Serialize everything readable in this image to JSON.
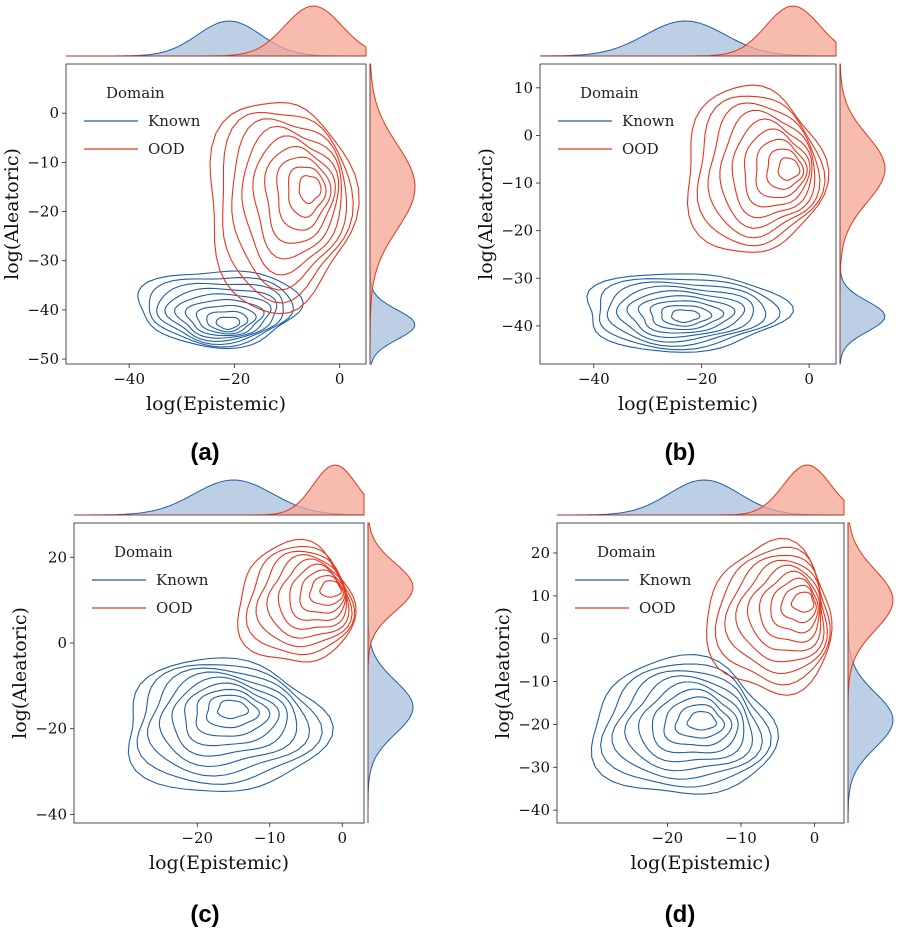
{
  "chart_data": [
    {
      "panel_label": "(a)",
      "type": "kde_contour_joint",
      "xlabel": "log(Epistemic)",
      "ylabel": "log(Aleatoric)",
      "xlim": [
        -52,
        5
      ],
      "ylim": [
        -51,
        10
      ],
      "xticks": [
        -40,
        -20,
        0
      ],
      "xtick_labels": [
        "−40",
        "−20",
        "0"
      ],
      "yticks": [
        0,
        -10,
        -20,
        -30,
        -40,
        -50
      ],
      "ytick_labels": [
        "0",
        "−10",
        "−20",
        "−30",
        "−40",
        "−50"
      ],
      "legend": {
        "title": "Domain",
        "position": "top-left",
        "entries": [
          "Known",
          "OOD"
        ]
      },
      "series": [
        {
          "name": "Known",
          "color": "#1f5fa6",
          "center": [
            -21,
            -43
          ],
          "spread": [
            8,
            3.2
          ],
          "outer_extent": {
            "x": [
              -38,
              -8
            ],
            "y": [
              -47,
              -32
            ]
          }
        },
        {
          "name": "OOD",
          "color": "#e8351c",
          "center": [
            -5,
            -15
          ],
          "spread": [
            6,
            9
          ],
          "outer_extent": {
            "x": [
              -25,
              2
            ],
            "y": [
              -40,
              3
            ]
          }
        }
      ]
    },
    {
      "panel_label": "(b)",
      "type": "kde_contour_joint",
      "xlabel": "log(Epistemic)",
      "ylabel": "log(Aleatoric)",
      "xlim": [
        -50,
        5
      ],
      "ylim": [
        -48,
        15
      ],
      "xticks": [
        -40,
        -20,
        0
      ],
      "xtick_labels": [
        "−40",
        "−20",
        "0"
      ],
      "yticks": [
        10,
        0,
        -10,
        -20,
        -30,
        -40
      ],
      "ytick_labels": [
        "10",
        "0",
        "−10",
        "−20",
        "−30",
        "−40"
      ],
      "legend": {
        "title": "Domain",
        "position": "top-left",
        "entries": [
          "Known",
          "OOD"
        ]
      },
      "series": [
        {
          "name": "Known",
          "color": "#1f5fa6",
          "center": [
            -23,
            -38
          ],
          "spread": [
            8,
            3.5
          ],
          "outer_extent": {
            "x": [
              -42,
              -5
            ],
            "y": [
              -45,
              -29
            ]
          }
        },
        {
          "name": "OOD",
          "color": "#e8351c",
          "center": [
            -3,
            -7
          ],
          "spread": [
            6,
            5
          ],
          "outer_extent": {
            "x": [
              -23,
              2
            ],
            "y": [
              -25,
              10
            ]
          }
        }
      ]
    },
    {
      "panel_label": "(c)",
      "type": "kde_contour_joint",
      "xlabel": "log(Epistemic)",
      "ylabel": "log(Aleatoric)",
      "xlim": [
        -37,
        3
      ],
      "ylim": [
        -42,
        28
      ],
      "xticks": [
        -20,
        -10,
        0
      ],
      "xtick_labels": [
        "−20",
        "−10",
        "0"
      ],
      "yticks": [
        20,
        0,
        -20,
        -40
      ],
      "ytick_labels": [
        "20",
        "0",
        "−20",
        "−40"
      ],
      "legend": {
        "title": "Domain",
        "position": "top-left",
        "entries": [
          "Known",
          "OOD"
        ]
      },
      "series": [
        {
          "name": "Known",
          "color": "#1f5fa6",
          "center": [
            -15,
            -15
          ],
          "spread": [
            6,
            5
          ],
          "outer_extent": {
            "x": [
              -30,
              -3
            ],
            "y": [
              -35,
              -4
            ]
          }
        },
        {
          "name": "OOD",
          "color": "#e8351c",
          "center": [
            -1,
            13
          ],
          "spread": [
            3,
            4
          ],
          "outer_extent": {
            "x": [
              -14,
              1
            ],
            "y": [
              -5,
              23
            ]
          }
        }
      ]
    },
    {
      "panel_label": "(d)",
      "type": "kde_contour_joint",
      "xlabel": "log(Epistemic)",
      "ylabel": "log(Aleatoric)",
      "xlim": [
        -35,
        4
      ],
      "ylim": [
        -43,
        27
      ],
      "xticks": [
        -20,
        -10,
        0
      ],
      "xtick_labels": [
        "−20",
        "−10",
        "0"
      ],
      "yticks": [
        20,
        10,
        0,
        -10,
        -20,
        -30,
        -40
      ],
      "ytick_labels": [
        "20",
        "10",
        "0",
        "−10",
        "−20",
        "−30",
        "−40"
      ],
      "legend": {
        "title": "Domain",
        "position": "top-left",
        "entries": [
          "Known",
          "OOD"
        ]
      },
      "series": [
        {
          "name": "Known",
          "color": "#1f5fa6",
          "center": [
            -15,
            -19
          ],
          "spread": [
            6,
            6
          ],
          "outer_extent": {
            "x": [
              -30,
              -6
            ],
            "y": [
              -37,
              -5
            ]
          }
        },
        {
          "name": "OOD",
          "color": "#e8351c",
          "center": [
            -1,
            9
          ],
          "spread": [
            3,
            6
          ],
          "outer_extent": {
            "x": [
              -14,
              2
            ],
            "y": [
              -13,
              22
            ]
          }
        }
      ]
    }
  ],
  "colors": {
    "known": "#1f5fa6",
    "ood": "#e8351c",
    "known_fill": "#a7bfdc",
    "ood_fill": "#f6a594"
  }
}
